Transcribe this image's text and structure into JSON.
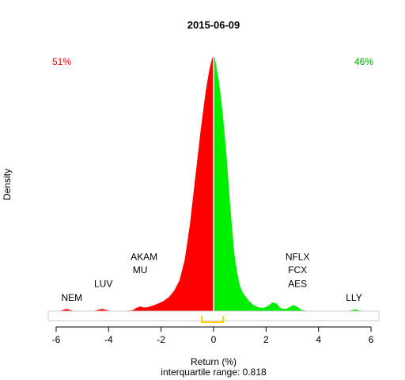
{
  "chart_data": {
    "type": "area",
    "title": "2015-06-09",
    "xlabel": "Return (%)",
    "ylabel": "Density",
    "subtitle": "interquartile range: 0.818",
    "xlim": [
      -6.3,
      6.3
    ],
    "x_ticks": [
      -6,
      -4,
      -2,
      0,
      2,
      4,
      6
    ],
    "y_max": 1.0,
    "grid": false,
    "split_at": 0,
    "colors": {
      "negative": "#ff0000",
      "positive": "#00ee00",
      "baseline": "#cccccc",
      "iqr": "#ffcc00"
    },
    "pct_negative": "51%",
    "pct_positive": "46%",
    "iqr_range": [
      -0.45,
      0.37
    ],
    "density": {
      "x": [
        -6.3,
        -5.9,
        -5.75,
        -5.6,
        -5.45,
        -5.3,
        -5.0,
        -4.6,
        -4.4,
        -4.25,
        -4.1,
        -3.9,
        -3.5,
        -3.1,
        -2.95,
        -2.8,
        -2.65,
        -2.5,
        -2.3,
        -2.1,
        -1.9,
        -1.7,
        -1.5,
        -1.3,
        -1.1,
        -0.9,
        -0.7,
        -0.5,
        -0.3,
        -0.15,
        -0.05,
        0.0,
        0.05,
        0.1,
        0.2,
        0.3,
        0.4,
        0.5,
        0.6,
        0.7,
        0.8,
        0.9,
        1.0,
        1.1,
        1.2,
        1.35,
        1.5,
        1.7,
        1.9,
        2.1,
        2.25,
        2.4,
        2.55,
        2.75,
        2.9,
        3.05,
        3.2,
        3.35,
        3.5,
        3.8,
        4.2,
        4.6,
        5.0,
        5.25,
        5.4,
        5.55,
        5.75,
        6.3
      ],
      "y": [
        0.0,
        0.0,
        0.004,
        0.009,
        0.004,
        0.0,
        0.0,
        0.0,
        0.005,
        0.009,
        0.005,
        0.0,
        0.0,
        0.003,
        0.012,
        0.018,
        0.014,
        0.016,
        0.022,
        0.03,
        0.04,
        0.055,
        0.08,
        0.12,
        0.2,
        0.34,
        0.52,
        0.7,
        0.86,
        0.95,
        0.99,
        1.0,
        0.99,
        0.96,
        0.9,
        0.82,
        0.72,
        0.6,
        0.46,
        0.33,
        0.22,
        0.15,
        0.1,
        0.075,
        0.06,
        0.04,
        0.025,
        0.015,
        0.012,
        0.022,
        0.034,
        0.03,
        0.012,
        0.008,
        0.016,
        0.024,
        0.016,
        0.005,
        0.002,
        0.0,
        0.0,
        0.0,
        0.0,
        0.003,
        0.007,
        0.003,
        0.0,
        0.0
      ]
    },
    "annotations": [
      {
        "text": "NEM",
        "x": -5.4,
        "y": 0.04
      },
      {
        "text": "LUV",
        "x": -4.2,
        "y": 0.095
      },
      {
        "text": "AKAM",
        "x": -2.65,
        "y": 0.2
      },
      {
        "text": "MU",
        "x": -2.8,
        "y": 0.148
      },
      {
        "text": "NFLX",
        "x": 3.2,
        "y": 0.2
      },
      {
        "text": "FCX",
        "x": 3.2,
        "y": 0.148
      },
      {
        "text": "AES",
        "x": 3.2,
        "y": 0.095
      },
      {
        "text": "LLY",
        "x": 5.35,
        "y": 0.04
      }
    ]
  }
}
